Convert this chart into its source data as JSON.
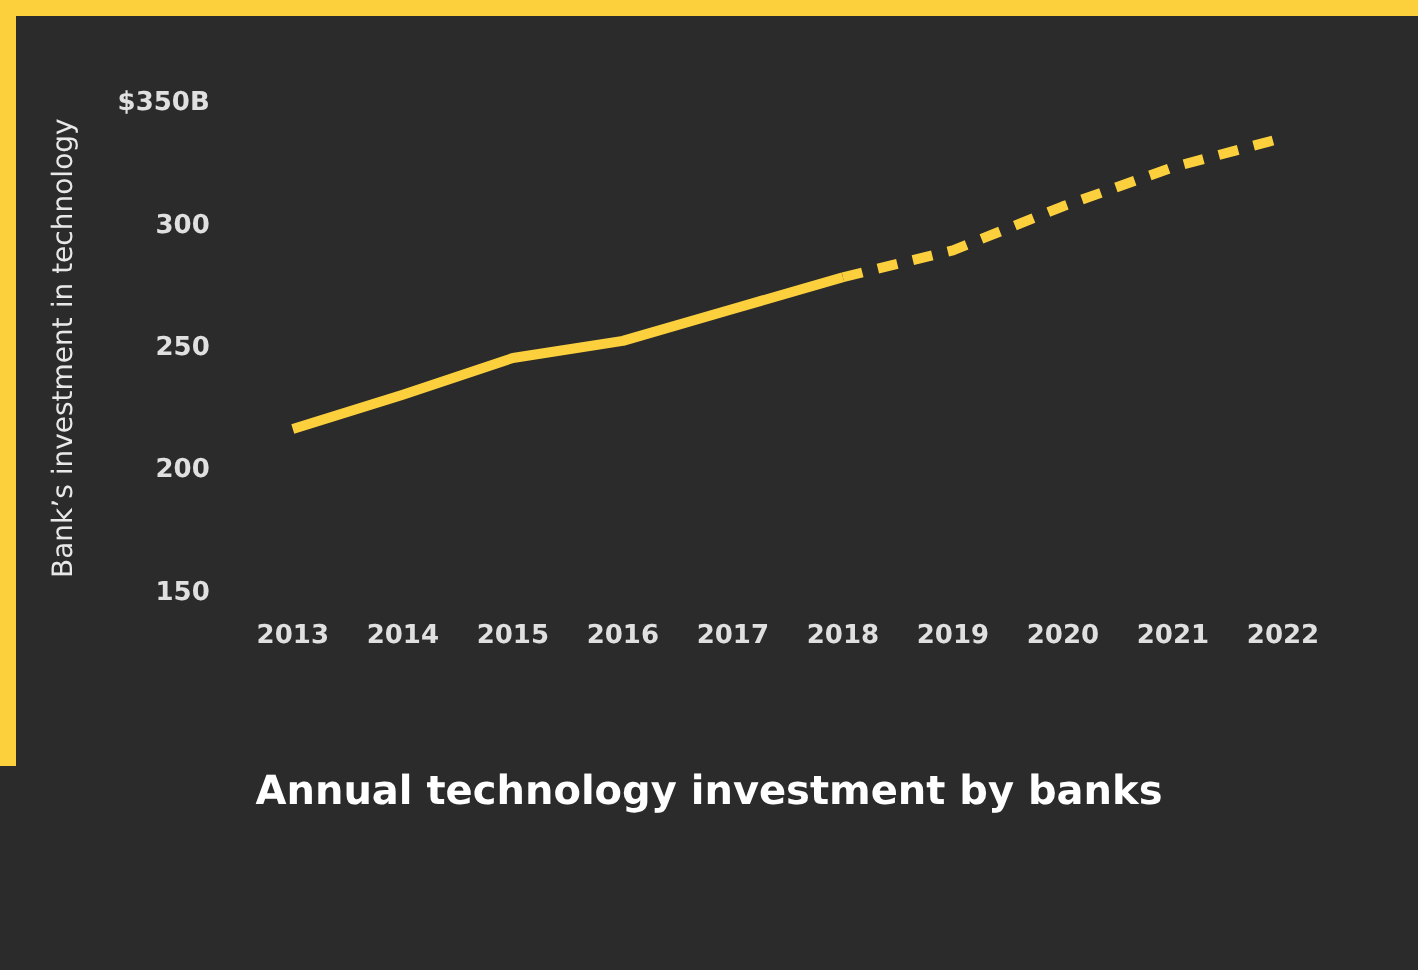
{
  "chart_data": {
    "type": "line",
    "title": "Annual technology investment by banks",
    "ylabel": "Bank’s investment in technology",
    "categories": [
      "2013",
      "2014",
      "2015",
      "2016",
      "2017",
      "2018",
      "2019",
      "2020",
      "2021",
      "2022"
    ],
    "series": [
      {
        "color": "#fcd03c",
        "line_style": "solid",
        "values": [
          217,
          231,
          246,
          253,
          266,
          279,
          null,
          null,
          null,
          null
        ]
      },
      {
        "color": "#fcd03c",
        "line_style": "dashed",
        "values": [
          null,
          null,
          null,
          null,
          null,
          279,
          290,
          308,
          324,
          336
        ]
      }
    ],
    "ylim": [
      150,
      350
    ],
    "yticks": [
      150,
      200,
      250,
      {
        "value": 300,
        "label": "300"
      },
      {
        "value": 350,
        "label": "$350B"
      }
    ],
    "grid": false,
    "legend": false
  }
}
